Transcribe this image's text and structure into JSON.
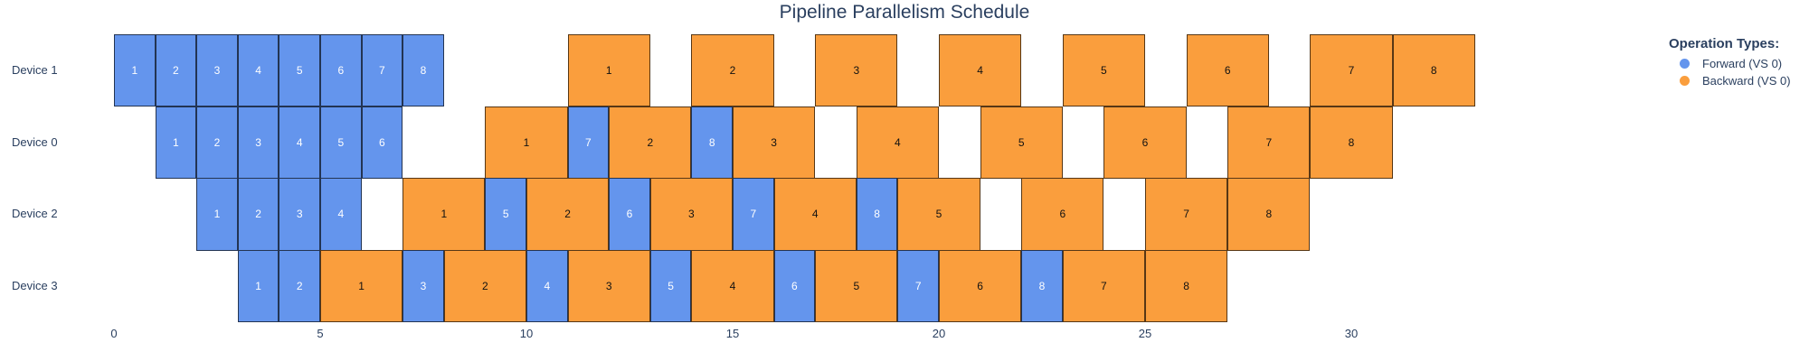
{
  "title": "Pipeline Parallelism Schedule",
  "colors": {
    "forward": "#6495ED",
    "backward": "#FA9E3D",
    "text": "#2a3f5f",
    "block_border": "rgba(0,0,0,0.65)",
    "forward_text": "#ffffff",
    "backward_text": "#111111",
    "background": "#ffffff"
  },
  "legend": {
    "title": "Operation Types:",
    "items": [
      {
        "name": "forward",
        "label": "Forward (VS 0)",
        "color": "#6495ED"
      },
      {
        "name": "backward",
        "label": "Backward (VS 0)",
        "color": "#FA9E3D"
      }
    ]
  },
  "chart_data": {
    "type": "gantt",
    "title": "Pipeline Parallelism Schedule",
    "xlabel": "",
    "ylabel": "",
    "x_ticks": [
      0,
      5,
      10,
      15,
      20,
      25,
      30
    ],
    "xlim": [
      -0.7,
      34
    ],
    "grid": false,
    "legend_position": "top-right",
    "duration_units": {
      "forward": 1,
      "backward": 2
    },
    "rows": [
      {
        "device": "Device 1",
        "blocks": [
          {
            "op": "forward",
            "mb": 1,
            "start": 0,
            "end": 1
          },
          {
            "op": "forward",
            "mb": 2,
            "start": 1,
            "end": 2
          },
          {
            "op": "forward",
            "mb": 3,
            "start": 2,
            "end": 3
          },
          {
            "op": "forward",
            "mb": 4,
            "start": 3,
            "end": 4
          },
          {
            "op": "forward",
            "mb": 5,
            "start": 4,
            "end": 5
          },
          {
            "op": "forward",
            "mb": 6,
            "start": 5,
            "end": 6
          },
          {
            "op": "forward",
            "mb": 7,
            "start": 6,
            "end": 7
          },
          {
            "op": "forward",
            "mb": 8,
            "start": 7,
            "end": 8
          },
          {
            "op": "backward",
            "mb": 1,
            "start": 11,
            "end": 13
          },
          {
            "op": "backward",
            "mb": 2,
            "start": 14,
            "end": 16
          },
          {
            "op": "backward",
            "mb": 3,
            "start": 17,
            "end": 19
          },
          {
            "op": "backward",
            "mb": 4,
            "start": 20,
            "end": 22
          },
          {
            "op": "backward",
            "mb": 5,
            "start": 23,
            "end": 25
          },
          {
            "op": "backward",
            "mb": 6,
            "start": 26,
            "end": 28
          },
          {
            "op": "backward",
            "mb": 7,
            "start": 29,
            "end": 31
          },
          {
            "op": "backward",
            "mb": 8,
            "start": 31,
            "end": 33
          }
        ]
      },
      {
        "device": "Device 0",
        "blocks": [
          {
            "op": "forward",
            "mb": 1,
            "start": 1,
            "end": 2
          },
          {
            "op": "forward",
            "mb": 2,
            "start": 2,
            "end": 3
          },
          {
            "op": "forward",
            "mb": 3,
            "start": 3,
            "end": 4
          },
          {
            "op": "forward",
            "mb": 4,
            "start": 4,
            "end": 5
          },
          {
            "op": "forward",
            "mb": 5,
            "start": 5,
            "end": 6
          },
          {
            "op": "forward",
            "mb": 6,
            "start": 6,
            "end": 7
          },
          {
            "op": "backward",
            "mb": 1,
            "start": 9,
            "end": 11
          },
          {
            "op": "forward",
            "mb": 7,
            "start": 11,
            "end": 12
          },
          {
            "op": "backward",
            "mb": 2,
            "start": 12,
            "end": 14
          },
          {
            "op": "forward",
            "mb": 8,
            "start": 14,
            "end": 15
          },
          {
            "op": "backward",
            "mb": 3,
            "start": 15,
            "end": 17
          },
          {
            "op": "backward",
            "mb": 4,
            "start": 18,
            "end": 20
          },
          {
            "op": "backward",
            "mb": 5,
            "start": 21,
            "end": 23
          },
          {
            "op": "backward",
            "mb": 6,
            "start": 24,
            "end": 26
          },
          {
            "op": "backward",
            "mb": 7,
            "start": 27,
            "end": 29
          },
          {
            "op": "backward",
            "mb": 8,
            "start": 29,
            "end": 31
          }
        ]
      },
      {
        "device": "Device 2",
        "blocks": [
          {
            "op": "forward",
            "mb": 1,
            "start": 2,
            "end": 3
          },
          {
            "op": "forward",
            "mb": 2,
            "start": 3,
            "end": 4
          },
          {
            "op": "forward",
            "mb": 3,
            "start": 4,
            "end": 5
          },
          {
            "op": "forward",
            "mb": 4,
            "start": 5,
            "end": 6
          },
          {
            "op": "backward",
            "mb": 1,
            "start": 7,
            "end": 9
          },
          {
            "op": "forward",
            "mb": 5,
            "start": 9,
            "end": 10
          },
          {
            "op": "backward",
            "mb": 2,
            "start": 10,
            "end": 12
          },
          {
            "op": "forward",
            "mb": 6,
            "start": 12,
            "end": 13
          },
          {
            "op": "backward",
            "mb": 3,
            "start": 13,
            "end": 15
          },
          {
            "op": "forward",
            "mb": 7,
            "start": 15,
            "end": 16
          },
          {
            "op": "backward",
            "mb": 4,
            "start": 16,
            "end": 18
          },
          {
            "op": "forward",
            "mb": 8,
            "start": 18,
            "end": 19
          },
          {
            "op": "backward",
            "mb": 5,
            "start": 19,
            "end": 21
          },
          {
            "op": "backward",
            "mb": 6,
            "start": 22,
            "end": 24
          },
          {
            "op": "backward",
            "mb": 7,
            "start": 25,
            "end": 27
          },
          {
            "op": "backward",
            "mb": 8,
            "start": 27,
            "end": 29
          }
        ]
      },
      {
        "device": "Device 3",
        "blocks": [
          {
            "op": "forward",
            "mb": 1,
            "start": 3,
            "end": 4
          },
          {
            "op": "forward",
            "mb": 2,
            "start": 4,
            "end": 5
          },
          {
            "op": "backward",
            "mb": 1,
            "start": 5,
            "end": 7
          },
          {
            "op": "forward",
            "mb": 3,
            "start": 7,
            "end": 8
          },
          {
            "op": "backward",
            "mb": 2,
            "start": 8,
            "end": 10
          },
          {
            "op": "forward",
            "mb": 4,
            "start": 10,
            "end": 11
          },
          {
            "op": "backward",
            "mb": 3,
            "start": 11,
            "end": 13
          },
          {
            "op": "forward",
            "mb": 5,
            "start": 13,
            "end": 14
          },
          {
            "op": "backward",
            "mb": 4,
            "start": 14,
            "end": 16
          },
          {
            "op": "forward",
            "mb": 6,
            "start": 16,
            "end": 17
          },
          {
            "op": "backward",
            "mb": 5,
            "start": 17,
            "end": 19
          },
          {
            "op": "forward",
            "mb": 7,
            "start": 19,
            "end": 20
          },
          {
            "op": "backward",
            "mb": 6,
            "start": 20,
            "end": 22
          },
          {
            "op": "forward",
            "mb": 8,
            "start": 22,
            "end": 23
          },
          {
            "op": "backward",
            "mb": 7,
            "start": 23,
            "end": 25
          },
          {
            "op": "backward",
            "mb": 8,
            "start": 25,
            "end": 27
          }
        ]
      }
    ]
  }
}
